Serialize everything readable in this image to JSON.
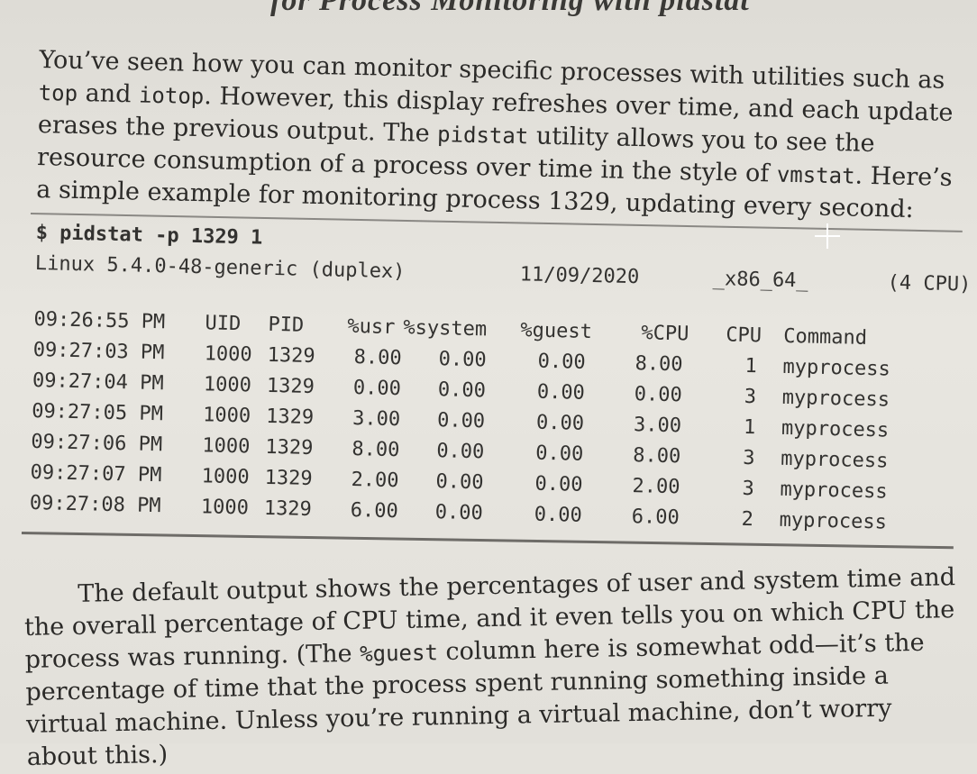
{
  "heading_fragment": "for Process Monitoring with pidstat",
  "intro": {
    "t1": "You’ve seen how you can monitor specific processes with utilities such as ",
    "c1": "top",
    "t2": " and ",
    "c2": "iotop",
    "t3": ". However, this display refreshes over time, and each update erases the previous output. The ",
    "c3": "pidstat",
    "t4": " utility allows you to see the resource consumption of a process over time in the style of ",
    "c4": "vmstat",
    "t5": ". Here’s a simple example for monitoring process 1329, updating every second:"
  },
  "listing": {
    "command": "$ pidstat -p 1329 1",
    "system": {
      "kernel": "Linux 5.4.0-48-generic (duplex)",
      "date": "11/09/2020",
      "arch": "_x86_64_",
      "cpus": "(4 CPU)"
    },
    "header": [
      "09:26:55 PM",
      "UID",
      "PID",
      "%usr",
      "%system",
      "%guest",
      "%CPU",
      "CPU",
      "Command"
    ],
    "rows": [
      [
        "09:27:03 PM",
        "1000",
        "1329",
        "8.00",
        "0.00",
        "0.00",
        "8.00",
        "1",
        "myprocess"
      ],
      [
        "09:27:04 PM",
        "1000",
        "1329",
        "0.00",
        "0.00",
        "0.00",
        "0.00",
        "3",
        "myprocess"
      ],
      [
        "09:27:05 PM",
        "1000",
        "1329",
        "3.00",
        "0.00",
        "0.00",
        "3.00",
        "1",
        "myprocess"
      ],
      [
        "09:27:06 PM",
        "1000",
        "1329",
        "8.00",
        "0.00",
        "0.00",
        "8.00",
        "3",
        "myprocess"
      ],
      [
        "09:27:07 PM",
        "1000",
        "1329",
        "2.00",
        "0.00",
        "0.00",
        "2.00",
        "3",
        "myprocess"
      ],
      [
        "09:27:08 PM",
        "1000",
        "1329",
        "6.00",
        "0.00",
        "0.00",
        "6.00",
        "2",
        "myprocess"
      ]
    ]
  },
  "outro": {
    "t1": "The default output shows the percentages of user and system time and the overall percentage of CPU time, and it even tells you on which CPU the process was running. (The ",
    "c1": "%guest",
    "t2": " column here is somewhat odd—it’s the percentage of time that the process spent running something inside a virtual machine. Unless you’re running a virtual machine, don’t worry about this.)"
  }
}
